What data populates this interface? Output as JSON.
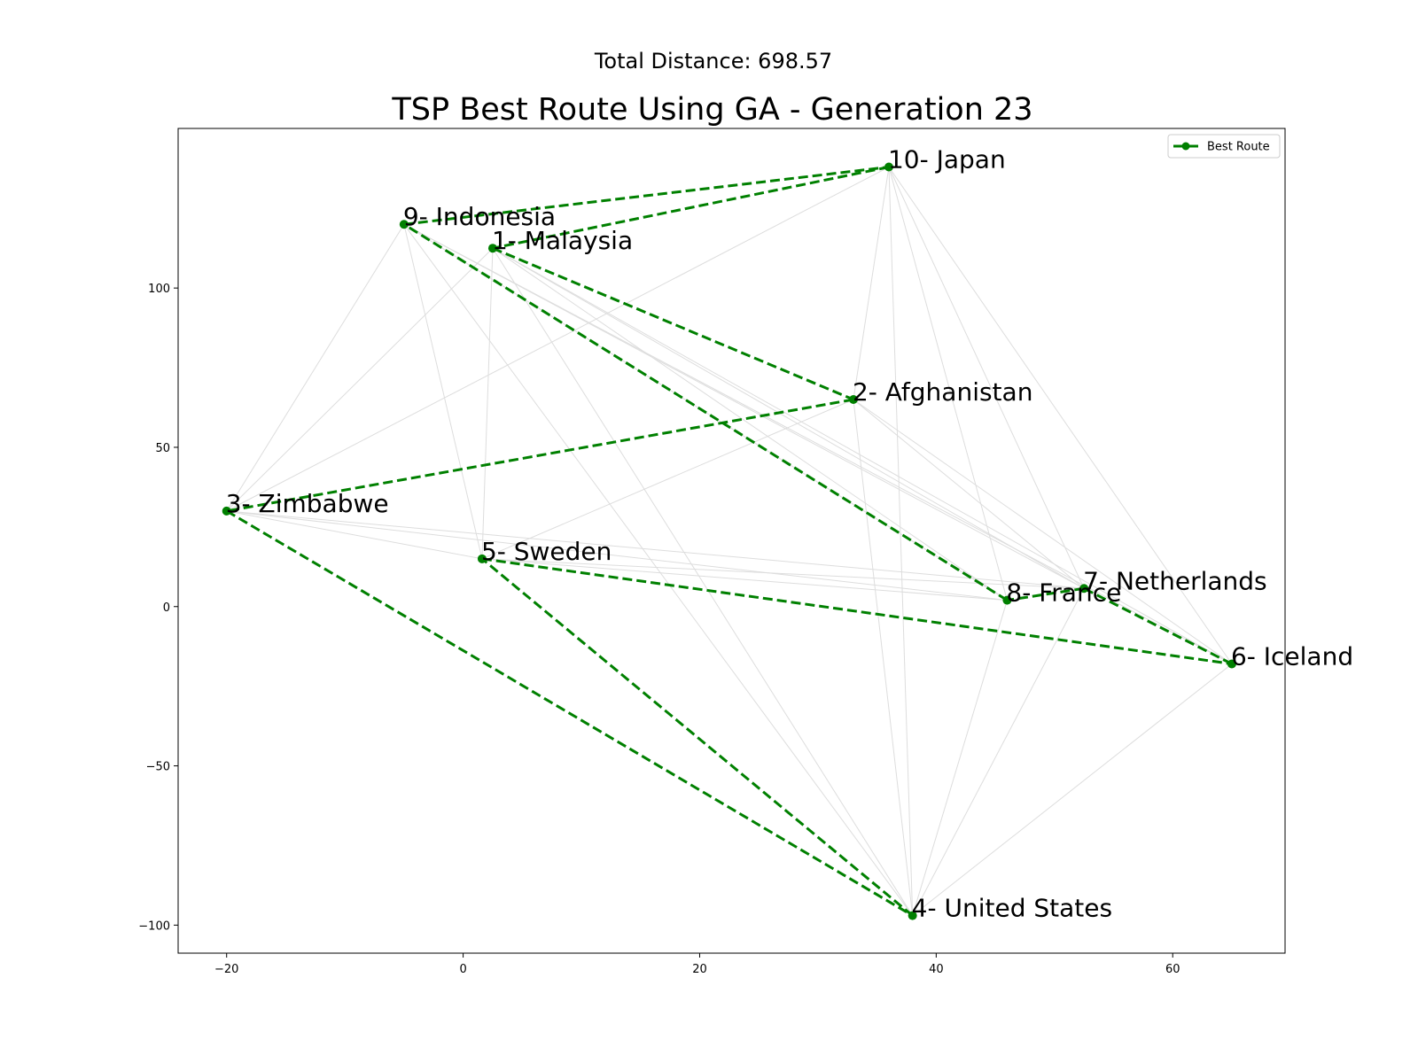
{
  "suptitle": "Total Distance: 698.57",
  "chart_data": {
    "type": "line",
    "title": "TSP Best Route Using GA - Generation 23",
    "xlabel": "",
    "ylabel": "",
    "xlim": [
      -24.1,
      69.5
    ],
    "ylim": [
      -108.8,
      150.1
    ],
    "xticks": [
      -20,
      0,
      20,
      40,
      60
    ],
    "yticks": [
      -100,
      -50,
      0,
      50,
      100
    ],
    "xtick_labels": [
      "−20",
      "0",
      "20",
      "40",
      "60"
    ],
    "ytick_labels": [
      "−100",
      "−50",
      "0",
      "50",
      "100"
    ],
    "grid": false,
    "legend": {
      "position": "top-right",
      "entries": [
        "Best Route"
      ]
    },
    "colors": {
      "route": "#008000",
      "background_edges": "#dddddd"
    },
    "cities": [
      {
        "label": "1- Malaysia",
        "x": 2.5,
        "y": 112.5
      },
      {
        "label": "2- Afghanistan",
        "x": 33.0,
        "y": 65.0
      },
      {
        "label": "3- Zimbabwe",
        "x": -20.0,
        "y": 30.0
      },
      {
        "label": "4- United States",
        "x": 38.0,
        "y": -97.0
      },
      {
        "label": "5- Sweden",
        "x": 1.6,
        "y": 15.0
      },
      {
        "label": "6- Iceland",
        "x": 65.0,
        "y": -18.0
      },
      {
        "label": "7- Netherlands",
        "x": 52.5,
        "y": 5.7
      },
      {
        "label": "8- France",
        "x": 46.0,
        "y": 2.0
      },
      {
        "label": "9- Indonesia",
        "x": -5.0,
        "y": 120.0
      },
      {
        "label": "10- Japan",
        "x": 36.0,
        "y": 138.0
      }
    ],
    "series": [
      {
        "name": "Best Route",
        "route_order": [
          1,
          2,
          3,
          4,
          5,
          6,
          7,
          8,
          9,
          10,
          1
        ]
      }
    ],
    "background_edges": [
      [
        9,
        3
      ],
      [
        9,
        5
      ],
      [
        9,
        4
      ],
      [
        9,
        7
      ],
      [
        9,
        6
      ],
      [
        1,
        3
      ],
      [
        1,
        5
      ],
      [
        1,
        8
      ],
      [
        1,
        7
      ],
      [
        1,
        6
      ],
      [
        10,
        3
      ],
      [
        10,
        2
      ],
      [
        10,
        4
      ],
      [
        10,
        8
      ],
      [
        10,
        7
      ],
      [
        10,
        6
      ],
      [
        2,
        5
      ],
      [
        2,
        4
      ],
      [
        2,
        7
      ],
      [
        2,
        6
      ],
      [
        3,
        5
      ],
      [
        3,
        8
      ],
      [
        3,
        7
      ],
      [
        5,
        7
      ],
      [
        5,
        8
      ],
      [
        8,
        4
      ],
      [
        7,
        4
      ],
      [
        6,
        4
      ],
      [
        9,
        8
      ],
      [
        1,
        4
      ]
    ]
  }
}
